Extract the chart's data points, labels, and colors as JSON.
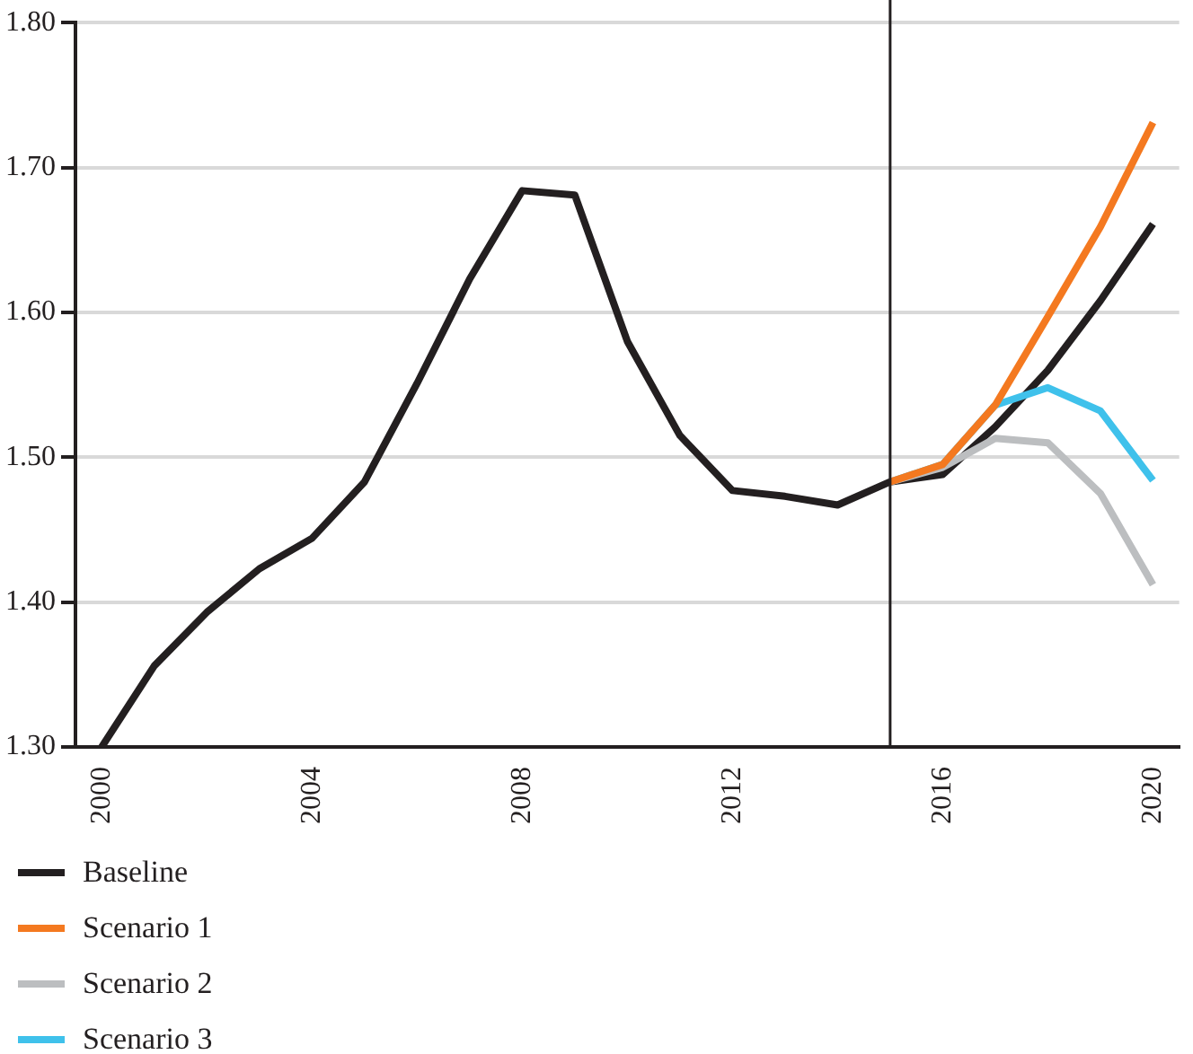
{
  "chart_data": {
    "type": "line",
    "x": [
      2000,
      2001,
      2002,
      2003,
      2004,
      2005,
      2006,
      2007,
      2008,
      2009,
      2010,
      2011,
      2012,
      2013,
      2014,
      2015,
      2016,
      2017,
      2018,
      2019,
      2020
    ],
    "xlim": [
      1999.5,
      2020.5
    ],
    "xticks": [
      2000,
      2004,
      2008,
      2012,
      2016,
      2020
    ],
    "ylim": [
      1.3,
      1.8
    ],
    "yticks": [
      {
        "value": 1.3,
        "label": "1.30"
      },
      {
        "value": 1.4,
        "label": "1.40"
      },
      {
        "value": 1.5,
        "label": "1.50"
      },
      {
        "value": 1.6,
        "label": "1.60"
      },
      {
        "value": 1.7,
        "label": "1.70"
      },
      {
        "value": 1.8,
        "label": "1.80"
      }
    ],
    "grid": "y",
    "legend": "bottom",
    "marker": "none",
    "ref_lines": [
      {
        "axis": "x",
        "value": 2015,
        "color": "#231f20"
      }
    ],
    "series": [
      {
        "name": "Scenario 1",
        "color": "#f47920",
        "values": [
          null,
          null,
          null,
          null,
          null,
          null,
          null,
          null,
          null,
          null,
          null,
          null,
          null,
          null,
          null,
          1.483,
          1.495,
          1.536,
          1.597,
          1.659,
          1.731
        ]
      },
      {
        "name": "Scenario 2",
        "color": "#bcbec0",
        "values": [
          null,
          null,
          null,
          null,
          null,
          null,
          null,
          null,
          null,
          null,
          null,
          null,
          null,
          null,
          null,
          1.483,
          1.493,
          1.513,
          1.51,
          1.475,
          1.412
        ]
      },
      {
        "name": "Scenario 3",
        "color": "#3fc1eb",
        "values": [
          null,
          null,
          null,
          null,
          null,
          null,
          null,
          null,
          null,
          null,
          null,
          null,
          null,
          null,
          null,
          1.483,
          1.495,
          1.536,
          1.548,
          1.532,
          1.484
        ]
      },
      {
        "name": "Baseline",
        "color": "#231f20",
        "values": [
          1.3,
          1.356,
          1.393,
          1.423,
          1.444,
          1.483,
          1.551,
          1.623,
          1.684,
          1.681,
          1.58,
          1.515,
          1.477,
          1.473,
          1.467,
          1.483,
          1.488,
          1.521,
          1.56,
          1.608,
          1.661
        ]
      }
    ]
  }
}
